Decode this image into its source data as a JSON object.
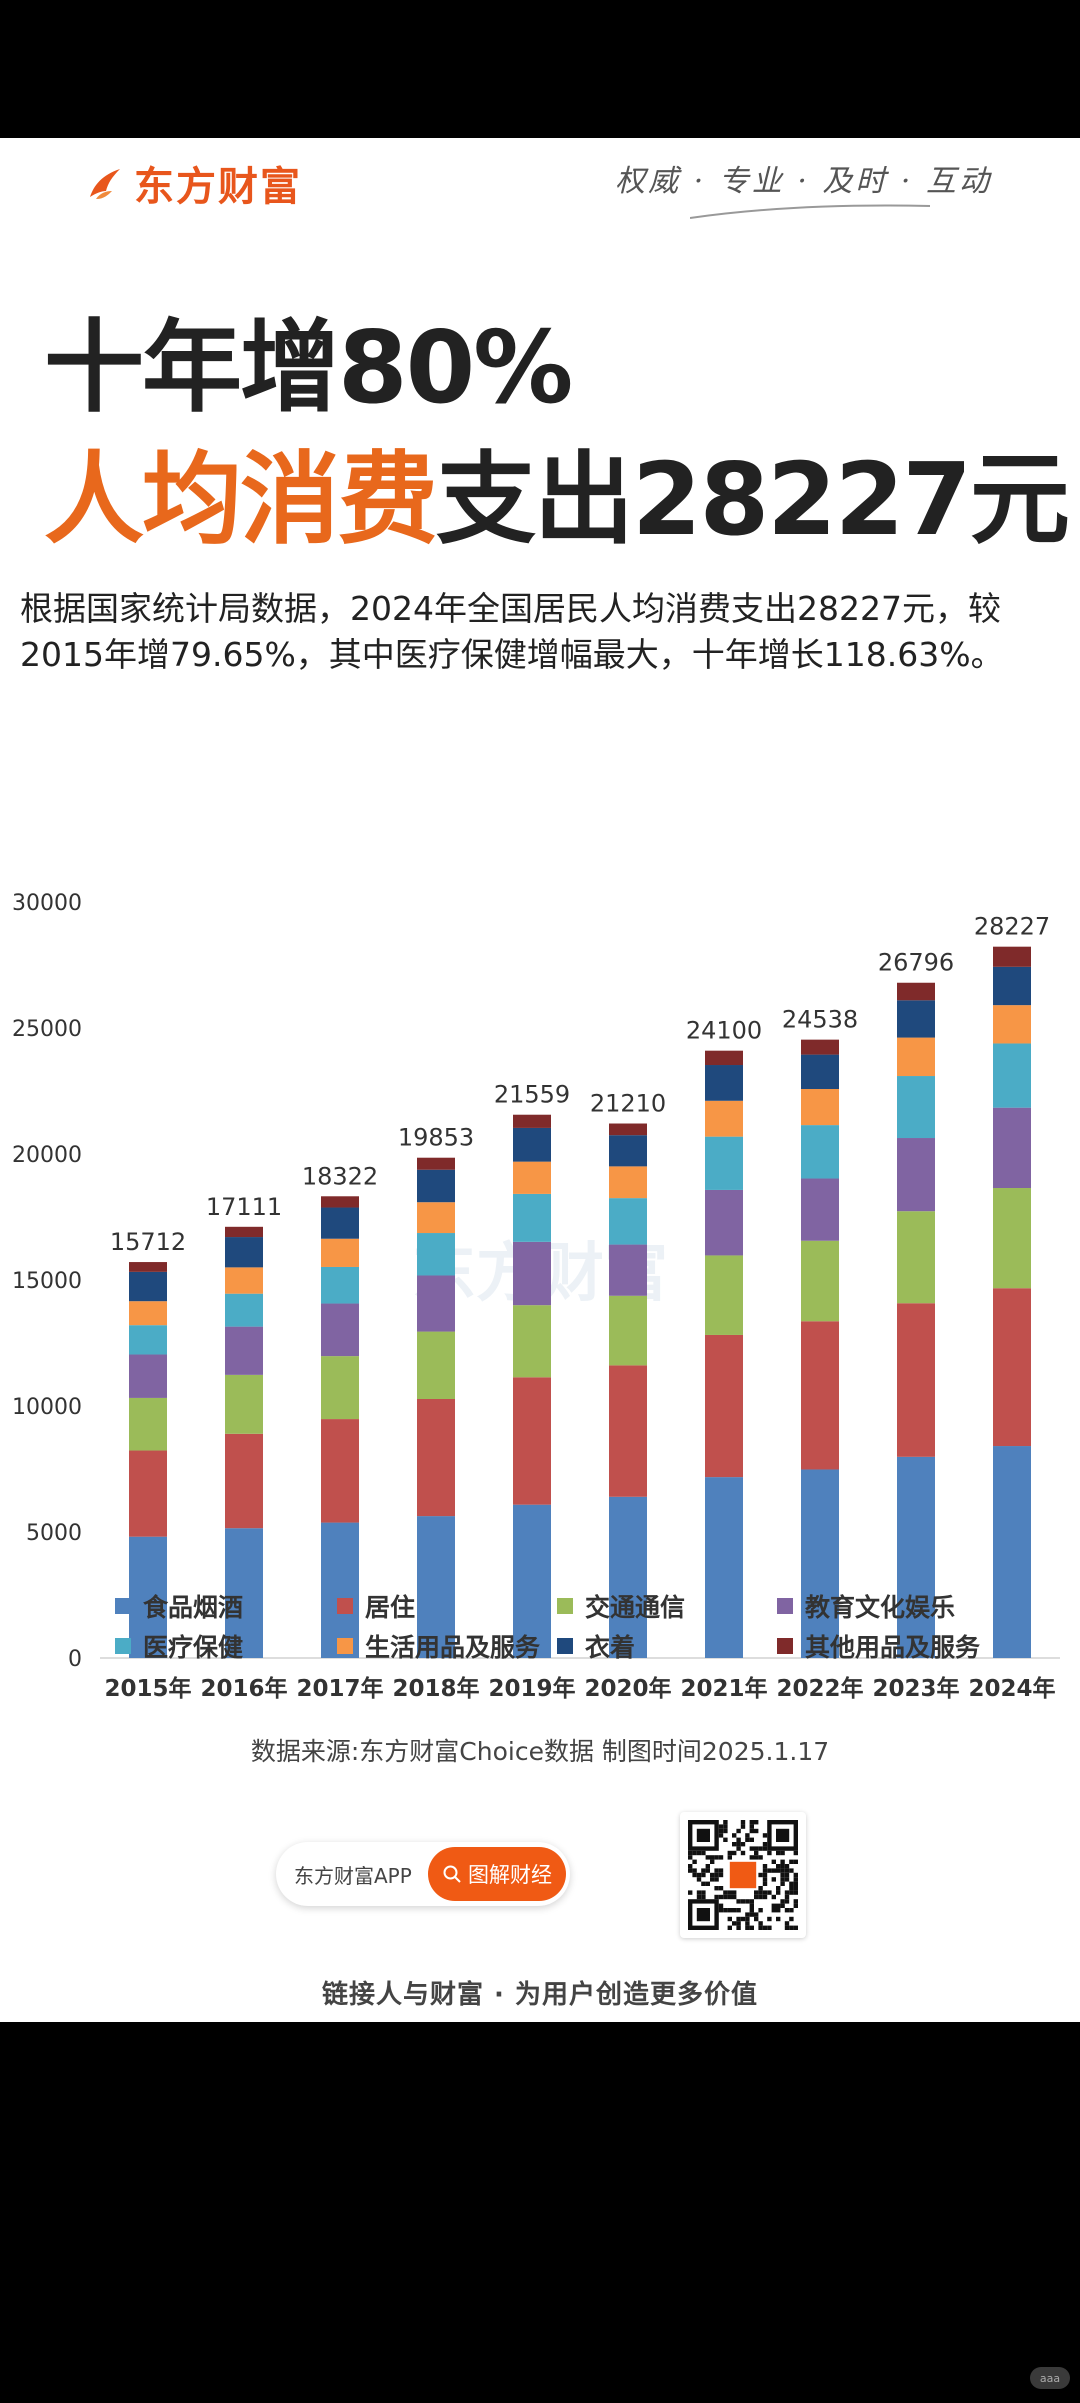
{
  "brand": {
    "name": "东方财富",
    "slogan": "权威 · 专业 · 及时 · 互动"
  },
  "headline": {
    "line1": "十年增80%",
    "line2_highlight": "人均消费",
    "line2_rest": "支出28227元"
  },
  "description": "根据国家统计局数据，2024年全国居民人均消费支出28227元，较2015年增79.65%，其中医疗保健增幅最大，十年增长118.63%。",
  "chart_data": {
    "type": "bar",
    "stacked": true,
    "watermark": "东方财富",
    "categories": [
      "2015年",
      "2016年",
      "2017年",
      "2018年",
      "2019年",
      "2020年",
      "2021年",
      "2022年",
      "2023年",
      "2024年"
    ],
    "totals": [
      15712,
      17111,
      18322,
      19853,
      21559,
      21210,
      24100,
      24538,
      26796,
      28227
    ],
    "ylim": [
      0,
      30000
    ],
    "yticks": [
      0,
      5000,
      10000,
      15000,
      20000,
      25000,
      30000
    ],
    "legend_position": "bottom",
    "series": [
      {
        "name": "食品烟酒",
        "color": "#4f81bd",
        "values": [
          4814,
          5151,
          5374,
          5631,
          6084,
          6397,
          7178,
          7481,
          7983,
          8411
        ]
      },
      {
        "name": "居住",
        "color": "#c0504d",
        "values": [
          3419,
          3746,
          4107,
          4647,
          5055,
          5215,
          5641,
          5882,
          6095,
          6263
        ]
      },
      {
        "name": "交通通信",
        "color": "#9bbb59",
        "values": [
          2087,
          2338,
          2499,
          2675,
          2862,
          2762,
          3156,
          3195,
          3652,
          3976
        ]
      },
      {
        "name": "教育文化娱乐",
        "color": "#8064a2",
        "values": [
          1723,
          1915,
          2086,
          2226,
          2513,
          2032,
          2599,
          2469,
          2904,
          3189
        ]
      },
      {
        "name": "医疗保健",
        "color": "#4bacc6",
        "values": [
          1165,
          1307,
          1451,
          1685,
          1902,
          1843,
          2115,
          2120,
          2460,
          2547
        ]
      },
      {
        "name": "生活用品及服务",
        "color": "#f79646",
        "values": [
          951,
          1044,
          1121,
          1223,
          1281,
          1260,
          1423,
          1432,
          1526,
          1521
        ]
      },
      {
        "name": "衣着",
        "color": "#1f497d",
        "values": [
          1164,
          1203,
          1238,
          1289,
          1338,
          1238,
          1419,
          1365,
          1479,
          1521
        ]
      },
      {
        "name": "其他用品及服务",
        "color": "#7f2a2a",
        "values": [
          389,
          407,
          446,
          477,
          524,
          463,
          569,
          594,
          697,
          799
        ]
      }
    ]
  },
  "source": "数据来源:东方财富Choice数据  制图时间2025.1.17",
  "app": {
    "name": "东方财富APP",
    "button": "图解财经"
  },
  "tagline": "链接人与财富 · 为用户创造更多价值",
  "corner_badge": "aaa"
}
